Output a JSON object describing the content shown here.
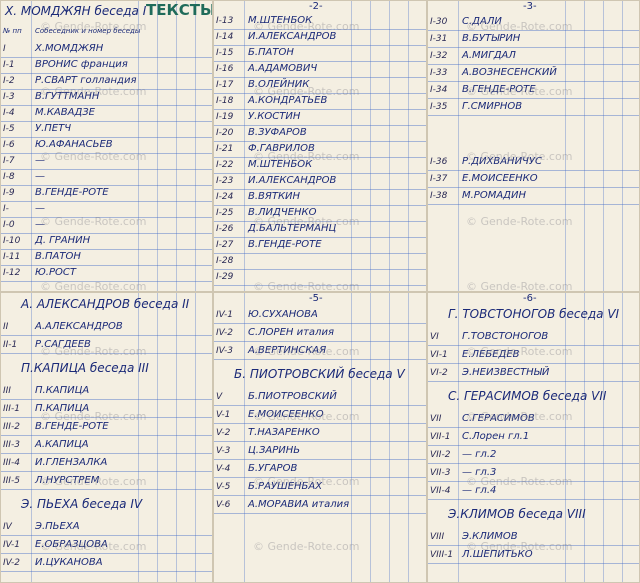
{
  "watermark": "© Gende-Rote.com",
  "panels": [
    {
      "title": "Х. МОМДЖЯН беседа I",
      "subtitle": "ТЕКСТЫ",
      "columns": [
        "№ пп",
        "Собеседник и номер беседы"
      ],
      "sections": [
        {
          "rows": [
            {
              "num": "I",
              "name": "Х.МОМДЖЯН"
            },
            {
              "num": "I-1",
              "name": "ВРОНИС франция"
            },
            {
              "num": "I-2",
              "name": "Р.СВАРТ голландия"
            },
            {
              "num": "I-3",
              "name": "В.ГУТТМАНН"
            },
            {
              "num": "I-4",
              "name": "М.КАВАДЗЕ"
            },
            {
              "num": "I-5",
              "name": "У.ПЕТЧ"
            },
            {
              "num": "I-6",
              "name": "Ю.АФАНАСЬЕВ"
            },
            {
              "num": "I-7",
              "name": "—"
            },
            {
              "num": "I-8",
              "name": "—"
            },
            {
              "num": "I-9",
              "name": "В.ГЕНДЕ-РОТЕ"
            },
            {
              "num": "I-",
              "name": "—"
            },
            {
              "num": "I-0",
              "name": "—"
            },
            {
              "num": "I-10",
              "name": "Д. ГРАНИН"
            },
            {
              "num": "I-11",
              "name": "В.ПАТОН"
            },
            {
              "num": "I-12",
              "name": "Ю.РОСТ"
            }
          ]
        }
      ]
    },
    {
      "page": "-2-",
      "sections": [
        {
          "rows": [
            {
              "num": "I-13",
              "name": "М.ШТЕНБОК"
            },
            {
              "num": "I-14",
              "name": "И.АЛЕКСАНДРОВ"
            },
            {
              "num": "I-15",
              "name": "Б.ПАТОН"
            },
            {
              "num": "I-16",
              "name": "А.АДАМОВИЧ"
            },
            {
              "num": "I-17",
              "name": "В.ОЛЕЙНИК"
            },
            {
              "num": "I-18",
              "name": "А.КОНДРАТЬЕВ"
            },
            {
              "num": "I-19",
              "name": "У.КОСТИН"
            },
            {
              "num": "I-20",
              "name": "В.ЗУФАРОВ"
            },
            {
              "num": "I-21",
              "name": "Ф.ГАВРИЛОВ"
            },
            {
              "num": "I-22",
              "name": "М.ШТЕНБОК"
            },
            {
              "num": "I-23",
              "name": "И.АЛЕКСАНДРОВ"
            },
            {
              "num": "I-24",
              "name": "В.ВЯТКИН"
            },
            {
              "num": "I-25",
              "name": "В.ЛИДЧЕНКО"
            },
            {
              "num": "I-26",
              "name": "Д.БАЛЬТЕРМАНЦ"
            },
            {
              "num": "I-27",
              "name": "В.ГЕНДЕ-РОТЕ"
            },
            {
              "num": "I-28",
              "name": ""
            },
            {
              "num": "I-29",
              "name": ""
            }
          ]
        }
      ]
    },
    {
      "page": "-3-",
      "sections": [
        {
          "rows": [
            {
              "num": "I-30",
              "name": "С.ДАЛИ"
            },
            {
              "num": "I-31",
              "name": "В.БУТЫРИН"
            },
            {
              "num": "I-32",
              "name": "А.МИГДАЛ"
            },
            {
              "num": "I-33",
              "name": "А.ВОЗНЕСЕНСКИЙ"
            },
            {
              "num": "I-34",
              "name": "В.ГЕНДЕ-РОТЕ"
            },
            {
              "num": "I-35",
              "name": "Г.СМИРНОВ"
            },
            {
              "num": "I-36",
              "name": "Р.ДИХВАНИЧУС"
            },
            {
              "num": "I-37",
              "name": "Е.МОИСЕЕНКО"
            },
            {
              "num": "I-38",
              "name": "М.РОМАДИН"
            }
          ]
        }
      ]
    },
    {
      "sections": [
        {
          "heading": "А. АЛЕКСАНДРОВ беседа II",
          "rows": [
            {
              "num": "II",
              "name": "А.АЛЕКСАНДРОВ"
            },
            {
              "num": "II-1",
              "name": "Р.САГДЕЕВ"
            }
          ]
        },
        {
          "heading": "П.КАПИЦА беседа III",
          "rows": [
            {
              "num": "III",
              "name": "П.КАПИЦА"
            },
            {
              "num": "III-1",
              "name": "П.КАПИЦА"
            },
            {
              "num": "III-2",
              "name": "В.ГЕНДЕ-РОТЕ"
            },
            {
              "num": "III-3",
              "name": "А.КАПИЦА"
            },
            {
              "num": "III-4",
              "name": "И.ГЛЕНЗАЛКА"
            },
            {
              "num": "III-5",
              "name": "Л.НУРСТРЕМ"
            }
          ]
        },
        {
          "heading": "Э. ПЬЕХА беседа IV",
          "rows": [
            {
              "num": "IV",
              "name": "Э.ПЬЕХА"
            },
            {
              "num": "IV-1",
              "name": "Е.ОБРАЗЦОВА"
            },
            {
              "num": "IV-2",
              "name": "И.ЦУКАНОВА"
            }
          ]
        }
      ]
    },
    {
      "page": "-5-",
      "sections": [
        {
          "rows": [
            {
              "num": "IV-1",
              "name": "Ю.СУХАНОВА"
            },
            {
              "num": "IV-2",
              "name": "С.ЛОРЕН италия"
            },
            {
              "num": "IV-3",
              "name": "А.ВЕРТИНСКАЯ"
            }
          ]
        },
        {
          "heading": "Б. ПИОТРОВСКИЙ беседа V",
          "rows": [
            {
              "num": "V",
              "name": "Б.ПИОТРОВСКИЙ"
            },
            {
              "num": "V-1",
              "name": "Е.МОИСЕЕНКО"
            },
            {
              "num": "V-2",
              "name": "Т.НАЗАРЕНКО"
            },
            {
              "num": "V-3",
              "name": "Ц.ЗАРИНЬ"
            },
            {
              "num": "V-4",
              "name": "Б.УГАРОВ"
            },
            {
              "num": "V-5",
              "name": "Б.РАУШЕНБАХ"
            },
            {
              "num": "V-6",
              "name": "А.МОРАВИА италия"
            }
          ]
        }
      ]
    },
    {
      "page": "-6-",
      "sections": [
        {
          "heading": "Г. ТОВСТОНОГОВ беседа VI",
          "rows": [
            {
              "num": "VI",
              "name": "Г.ТОВСТОНОГОВ"
            },
            {
              "num": "VI-1",
              "name": "Е.ЛЕБЕДЕВ"
            },
            {
              "num": "VI-2",
              "name": "Э.НЕИЗВЕСТНЫЙ"
            }
          ]
        },
        {
          "heading": "С. ГЕРАСИМОВ беседа VII",
          "rows": [
            {
              "num": "VII",
              "name": "С.ГЕРАСИМОВ"
            },
            {
              "num": "VII-1",
              "name": "С.Лорен гл.1"
            },
            {
              "num": "VII-2",
              "name": "— гл.2"
            },
            {
              "num": "VII-3",
              "name": "— гл.3"
            },
            {
              "num": "VII-4",
              "name": "— гл.4"
            }
          ]
        },
        {
          "heading": "Э.КЛИМОВ беседа VIII",
          "rows": [
            {
              "num": "VIII",
              "name": "Э.КЛИМОВ"
            },
            {
              "num": "VIII-1",
              "name": "Л.ШЕПИТЬКО"
            }
          ]
        }
      ]
    }
  ]
}
